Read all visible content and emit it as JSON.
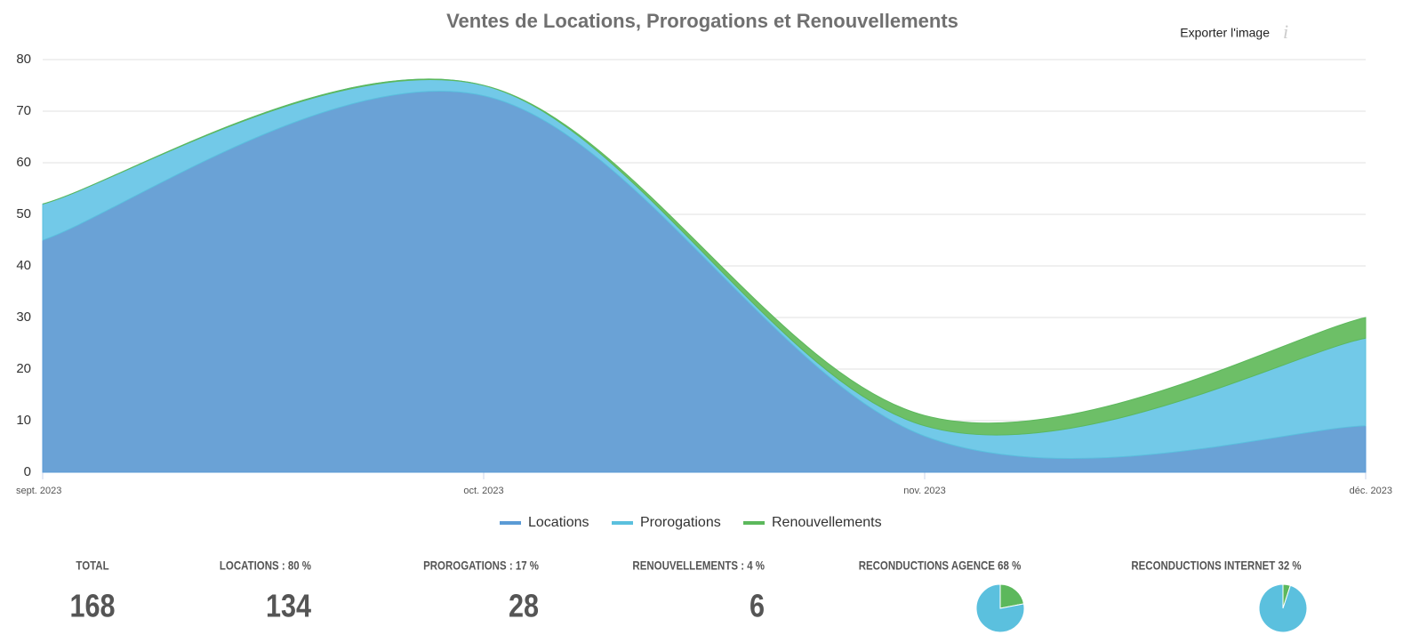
{
  "chart_data": {
    "type": "area",
    "stacked": true,
    "title": "Ventes de Locations, Prorogations et Renouvellements",
    "x": [
      "sept. 2023",
      "oct. 2023",
      "nov. 2023",
      "déc. 2023"
    ],
    "series": [
      {
        "name": "Locations",
        "color": "#5b9bd5",
        "fill": "#6aa2d6",
        "values": [
          45,
          73,
          7,
          9
        ]
      },
      {
        "name": "Prorogations",
        "color": "#5bc0de",
        "fill": "#72c9e8",
        "values": [
          7,
          2,
          2,
          17
        ]
      },
      {
        "name": "Renouvellements",
        "color": "#5cb85c",
        "fill": "#6dbf67",
        "values": [
          0,
          0,
          2,
          4
        ]
      }
    ],
    "ylim": [
      0,
      80
    ],
    "yticks": [
      0,
      10,
      20,
      30,
      40,
      50,
      60,
      70,
      80
    ],
    "grid": true,
    "legend": "bottom"
  },
  "export_label": "Exporter l'image",
  "summary": [
    {
      "label": "TOTAL",
      "value": 168
    },
    {
      "label": "LOCATIONS : 80 %",
      "value": 134
    },
    {
      "label": "PROROGATIONS : 17 %",
      "value": 28
    },
    {
      "label": "RENOUVELLEMENTS : 4 %",
      "value": 6
    }
  ],
  "reconductions": [
    {
      "label": "RECONDUCTIONS AGENCE 68 %",
      "values": [
        22,
        78
      ],
      "colors": [
        "#5cb85c",
        "#5bc0de"
      ]
    },
    {
      "label": "RECONDUCTIONS INTERNET 32 %",
      "values": [
        5,
        95
      ],
      "colors": [
        "#5cb85c",
        "#5bc0de"
      ]
    }
  ]
}
